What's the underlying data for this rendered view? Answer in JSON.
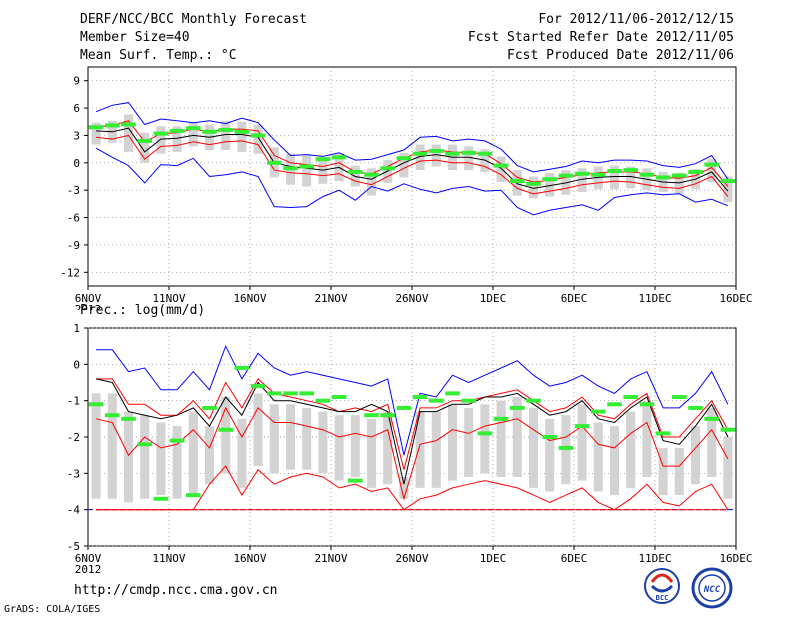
{
  "header": {
    "title": "DERF/NCC/BCC Monthly Forecast",
    "member": "Member Size=40",
    "variable": "Mean Surf. Temp.: °C",
    "period": "For 2012/11/06-2012/12/15",
    "started": "Fcst Started Refer Date 2012/11/05",
    "produced": "Fcst Produced Date 2012/11/06"
  },
  "footer": {
    "url": "http://cmdp.ncc.cma.gov.cn",
    "credit": "GrADS: COLA/IGES",
    "logo_left": "BCC",
    "logo_right": "NCC"
  },
  "colors": {
    "envelope": "#0000ff",
    "spread": "#ff0000",
    "mean": "#000000",
    "obs": "#33ee33",
    "box": "#d3d3d3",
    "zero": "#0000cc"
  },
  "chart_data": [
    {
      "type": "line",
      "title": "Mean Surf. Temp.: °C",
      "ylim": [
        -13.5,
        10.5
      ],
      "yticks": [
        9,
        6,
        3,
        0,
        -3,
        -6,
        -9,
        -12
      ],
      "xticks": [
        "6NOV",
        "11NOV",
        "16NOV",
        "21NOV",
        "26NOV",
        "1DEC",
        "6DEC",
        "11DEC",
        "16DEC"
      ],
      "xyear": "2012",
      "days": 40,
      "series": [
        {
          "name": "max",
          "color": "#0000ff",
          "values": [
            5.6,
            6.3,
            6.6,
            4.2,
            4.8,
            4.6,
            4.4,
            4.6,
            4.3,
            4.9,
            4.4,
            2.5,
            0.8,
            0.9,
            0.7,
            1.1,
            0.3,
            0.4,
            0.9,
            1.4,
            2.8,
            2.9,
            2.4,
            2.6,
            2.4,
            1.5,
            -0.3,
            -1.0,
            -0.7,
            -0.4,
            0.2,
            0.0,
            0.3,
            0.3,
            0.2,
            -0.3,
            -0.5,
            -0.1,
            0.8,
            -1.8
          ]
        },
        {
          "name": "p75",
          "color": "#ff0000",
          "values": [
            3.9,
            4.1,
            4.6,
            2.3,
            3.2,
            3.3,
            3.7,
            3.4,
            3.7,
            3.7,
            3.5,
            0.8,
            0.0,
            -0.2,
            -0.4,
            0.0,
            -1.0,
            -1.2,
            -0.4,
            0.5,
            1.2,
            1.4,
            1.2,
            1.1,
            1.0,
            -0.1,
            -1.6,
            -2.1,
            -1.9,
            -1.6,
            -1.3,
            -1.1,
            -1.0,
            -1.0,
            -1.2,
            -1.6,
            -1.7,
            -1.4,
            -0.5,
            -2.6
          ]
        },
        {
          "name": "mean",
          "color": "#000000",
          "values": [
            3.5,
            3.4,
            3.8,
            1.2,
            2.6,
            2.7,
            3.0,
            2.8,
            3.1,
            3.1,
            2.8,
            0.0,
            -0.4,
            -0.6,
            -0.8,
            -0.5,
            -1.5,
            -1.8,
            -0.9,
            0.0,
            0.7,
            0.9,
            0.6,
            0.6,
            0.3,
            -0.6,
            -2.3,
            -2.8,
            -2.5,
            -2.2,
            -1.8,
            -1.6,
            -1.5,
            -1.5,
            -1.8,
            -2.1,
            -2.2,
            -1.8,
            -1.0,
            -3.1
          ]
        },
        {
          "name": "p25",
          "color": "#ff0000",
          "values": [
            2.8,
            2.6,
            3.0,
            0.4,
            1.8,
            1.9,
            2.3,
            2.0,
            2.3,
            2.4,
            2.0,
            -0.8,
            -1.1,
            -1.2,
            -1.4,
            -1.2,
            -2.0,
            -2.4,
            -1.5,
            -0.6,
            0.2,
            0.3,
            0.0,
            0.0,
            -0.4,
            -1.3,
            -2.8,
            -3.4,
            -3.1,
            -2.8,
            -2.4,
            -2.2,
            -2.0,
            -2.1,
            -2.4,
            -2.7,
            -2.8,
            -2.3,
            -1.5,
            -3.7
          ]
        },
        {
          "name": "min",
          "color": "#0000ff",
          "values": [
            1.6,
            0.6,
            -0.3,
            -2.2,
            -0.2,
            -0.3,
            0.5,
            -1.5,
            -1.3,
            -1.0,
            -1.5,
            -4.8,
            -4.9,
            -4.8,
            -3.7,
            -3.0,
            -4.1,
            -2.6,
            -3.1,
            -2.3,
            -2.9,
            -3.3,
            -2.8,
            -2.6,
            -3.1,
            -3.0,
            -4.9,
            -5.7,
            -5.2,
            -4.9,
            -4.6,
            -5.2,
            -3.8,
            -3.5,
            -3.3,
            -3.5,
            -3.4,
            -4.3,
            -4.0,
            -4.7
          ]
        },
        {
          "name": "obs",
          "color": "#33ee33",
          "values": [
            3.9,
            4.1,
            4.2,
            2.4,
            3.2,
            3.5,
            3.8,
            3.4,
            3.6,
            3.4,
            3.0,
            0.0,
            -0.6,
            -0.4,
            0.4,
            0.6,
            -1.0,
            -1.3,
            -0.6,
            0.5,
            1.0,
            1.3,
            1.0,
            1.1,
            1.0,
            -0.3,
            -2.0,
            -2.3,
            -1.8,
            -1.4,
            -1.2,
            -1.3,
            -0.9,
            -0.8,
            -1.3,
            -1.6,
            -1.4,
            -1.0,
            -0.2,
            -2.0
          ]
        }
      ],
      "box_low": [
        2.0,
        2.2,
        1.2,
        0.0,
        1.0,
        1.2,
        1.8,
        1.4,
        1.4,
        1.2,
        1.0,
        -1.6,
        -2.4,
        -2.6,
        -2.3,
        -2.0,
        -2.6,
        -3.6,
        -2.2,
        -1.6,
        -0.8,
        -0.4,
        -0.8,
        -0.8,
        -1.0,
        -2.1,
        -3.6,
        -3.9,
        -3.7,
        -3.5,
        -3.2,
        -2.9,
        -2.9,
        -2.8,
        -3.0,
        -3.2,
        -3.4,
        -2.9,
        -2.1,
        -4.3
      ],
      "box_high": [
        4.4,
        4.6,
        5.3,
        3.3,
        4.0,
        4.0,
        4.4,
        4.2,
        4.6,
        4.5,
        4.2,
        1.7,
        1.0,
        0.8,
        0.5,
        1.0,
        -0.3,
        -0.6,
        0.3,
        1.1,
        2.0,
        2.0,
        2.0,
        1.8,
        1.5,
        0.7,
        -0.8,
        -1.5,
        -1.1,
        -0.8,
        -0.6,
        -0.4,
        -0.3,
        -0.4,
        -0.6,
        -1.0,
        -1.1,
        -0.7,
        0.4,
        -1.5
      ]
    },
    {
      "type": "line",
      "title": "Prec.: log(mm/d)",
      "ylim": [
        -5,
        1
      ],
      "yticks": [
        1,
        0,
        -1,
        -2,
        -3,
        -4,
        -5
      ],
      "xticks": [
        "6NOV",
        "11NOV",
        "16NOV",
        "21NOV",
        "26NOV",
        "1DEC",
        "6DEC",
        "11DEC",
        "16DEC"
      ],
      "xyear": "2012",
      "days": 40,
      "series": [
        {
          "name": "max",
          "color": "#0000ff",
          "values": [
            0.4,
            0.4,
            -0.2,
            -0.1,
            -0.7,
            -0.7,
            -0.2,
            -0.7,
            0.5,
            -0.4,
            0.3,
            -0.1,
            -0.3,
            -0.2,
            -0.3,
            -0.4,
            -0.5,
            -0.6,
            -0.4,
            -2.5,
            -0.8,
            -0.9,
            -0.3,
            -0.5,
            -0.3,
            -0.1,
            0.1,
            -0.3,
            -0.6,
            -0.5,
            -0.3,
            -0.6,
            -0.8,
            -0.4,
            -0.2,
            -1.2,
            -1.2,
            -0.8,
            -0.2,
            -1.1
          ]
        },
        {
          "name": "p75",
          "color": "#ff0000",
          "values": [
            -0.4,
            -0.4,
            -1.1,
            -1.1,
            -1.4,
            -1.4,
            -1.0,
            -1.5,
            -0.5,
            -1.2,
            -0.4,
            -0.8,
            -0.9,
            -1.0,
            -1.1,
            -1.3,
            -1.2,
            -1.3,
            -1.1,
            -2.9,
            -1.2,
            -1.2,
            -1.0,
            -1.0,
            -0.9,
            -0.8,
            -0.7,
            -1.0,
            -1.3,
            -1.2,
            -0.9,
            -1.4,
            -1.5,
            -1.1,
            -0.8,
            -2.0,
            -2.0,
            -1.5,
            -1.0,
            -1.8
          ]
        },
        {
          "name": "p50",
          "color": "#ff0000",
          "values": [
            -1.5,
            -1.6,
            -2.5,
            -2.0,
            -2.3,
            -2.2,
            -1.8,
            -2.3,
            -1.2,
            -2.0,
            -1.2,
            -1.6,
            -1.6,
            -1.7,
            -1.8,
            -2.0,
            -1.9,
            -2.0,
            -1.8,
            -3.7,
            -2.2,
            -2.1,
            -1.8,
            -1.9,
            -1.7,
            -1.6,
            -1.5,
            -1.8,
            -2.1,
            -2.0,
            -1.7,
            -2.2,
            -2.3,
            -1.9,
            -1.6,
            -2.8,
            -2.8,
            -2.3,
            -1.8,
            -2.6
          ]
        },
        {
          "name": "p25",
          "color": "#ff0000",
          "values": [
            -4.0,
            -4.0,
            -4.0,
            -4.0,
            -4.0,
            -4.0,
            -4.0,
            -3.3,
            -2.8,
            -3.6,
            -2.9,
            -3.3,
            -3.1,
            -3.0,
            -3.1,
            -3.4,
            -3.3,
            -3.5,
            -3.4,
            -4.0,
            -3.7,
            -3.6,
            -3.4,
            -3.3,
            -3.2,
            -3.3,
            -3.4,
            -3.6,
            -3.8,
            -3.6,
            -3.4,
            -3.8,
            -4.0,
            -3.7,
            -3.3,
            -3.8,
            -3.9,
            -3.5,
            -3.3,
            -4.0
          ]
        },
        {
          "name": "min",
          "color": "#ff0000",
          "values": [
            -4.0,
            -4.0,
            -4.0,
            -4.0,
            -4.0,
            -4.0,
            -4.0,
            -4.0,
            -4.0,
            -4.0,
            -4.0,
            -4.0,
            -4.0,
            -4.0,
            -4.0,
            -4.0,
            -4.0,
            -4.0,
            -4.0,
            -4.0,
            -4.0,
            -4.0,
            -4.0,
            -4.0,
            -4.0,
            -4.0,
            -4.0,
            -4.0,
            -4.0,
            -4.0,
            -4.0,
            -4.0,
            -4.0,
            -4.0,
            -4.0,
            -4.0,
            -4.0,
            -4.0,
            -4.0,
            -4.0
          ]
        },
        {
          "name": "mean",
          "color": "#000000",
          "values": [
            -0.4,
            -0.5,
            -1.3,
            -1.4,
            -1.5,
            -1.4,
            -1.2,
            -1.7,
            -0.9,
            -1.4,
            -0.5,
            -1.0,
            -1.0,
            -1.1,
            -1.2,
            -1.3,
            -1.3,
            -1.1,
            -1.3,
            -3.3,
            -1.3,
            -1.3,
            -1.1,
            -1.1,
            -0.9,
            -0.9,
            -0.8,
            -1.1,
            -1.4,
            -1.3,
            -1.0,
            -1.5,
            -1.6,
            -1.2,
            -0.9,
            -2.1,
            -2.2,
            -1.7,
            -1.1,
            -2.0
          ]
        },
        {
          "name": "obs",
          "color": "#33ee33",
          "values": [
            -1.1,
            -1.4,
            -1.5,
            -2.2,
            -3.7,
            -2.1,
            -3.6,
            -1.2,
            -1.8,
            -0.1,
            -0.6,
            -0.8,
            -0.8,
            -0.8,
            -1.0,
            -0.9,
            -3.2,
            -1.4,
            -1.4,
            -1.2,
            -0.9,
            -1.0,
            -0.8,
            -1.0,
            -1.9,
            -1.5,
            -1.2,
            -1.0,
            -2.0,
            -2.3,
            -1.7,
            -1.3,
            -1.1,
            -0.9,
            -1.1,
            -1.9,
            -0.9,
            -1.2,
            -1.5,
            -1.8
          ]
        }
      ],
      "box_low": [
        -3.7,
        -3.7,
        -3.8,
        -3.7,
        -3.6,
        -3.7,
        -3.6,
        -3.3,
        -3.0,
        -3.4,
        -2.8,
        -3.0,
        -2.9,
        -2.9,
        -3.0,
        -3.2,
        -3.1,
        -3.4,
        -3.3,
        -3.7,
        -3.4,
        -3.4,
        -3.2,
        -3.1,
        -3.0,
        -3.1,
        -3.1,
        -3.4,
        -3.5,
        -3.3,
        -3.2,
        -3.5,
        -3.6,
        -3.4,
        -3.1,
        -3.6,
        -3.6,
        -3.3,
        -3.1,
        -3.7
      ],
      "box_high": [
        -0.8,
        -0.8,
        -1.3,
        -1.4,
        -1.6,
        -1.7,
        -1.3,
        -1.7,
        -0.9,
        -1.5,
        -0.8,
        -1.1,
        -1.1,
        -1.2,
        -1.3,
        -1.4,
        -1.4,
        -1.5,
        -1.3,
        -3.1,
        -1.3,
        -1.3,
        -1.1,
        -1.2,
        -1.1,
        -1.0,
        -0.9,
        -1.2,
        -1.5,
        -1.4,
        -1.1,
        -1.6,
        -1.7,
        -1.3,
        -1.0,
        -2.3,
        -2.3,
        -1.7,
        -1.2,
        -2.0
      ]
    }
  ]
}
